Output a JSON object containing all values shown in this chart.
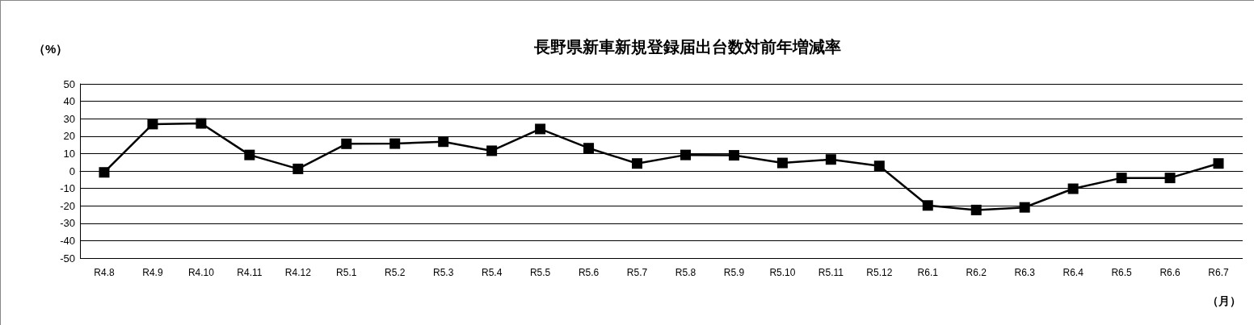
{
  "chart_data": {
    "type": "line",
    "title": "長野県新車新規登録届出台数対前年増減率",
    "ylabel": "（%）",
    "xlabel": "（月）",
    "categories": [
      "R4.8",
      "R4.9",
      "R4.10",
      "R4.11",
      "R4.12",
      "R5.1",
      "R5.2",
      "R5.3",
      "R5.4",
      "R5.5",
      "R5.6",
      "R5.7",
      "R5.8",
      "R5.9",
      "R5.10",
      "R5.11",
      "R5.12",
      "R6.1",
      "R6.2",
      "R6.3",
      "R6.4",
      "R6.5",
      "R6.6",
      "R6.7"
    ],
    "series": [
      {
        "color": "#000000",
        "values": [
          -0.8,
          26.9,
          27.3,
          9.2,
          1.2,
          15.6,
          15.7,
          16.8,
          11.6,
          24.1,
          13.1,
          4.3,
          9.2,
          9.0,
          4.6,
          6.6,
          2.9,
          -19.8,
          -22.4,
          -20.9,
          -10.2,
          -4.0,
          -4.0,
          4.3
        ]
      }
    ],
    "ylim": [
      -50,
      50
    ],
    "yticks": [
      -50,
      -40,
      -30,
      -20,
      -10,
      0,
      10,
      20,
      30,
      40,
      50
    ],
    "grid": "y",
    "marker": "square",
    "line_style": "solid"
  }
}
